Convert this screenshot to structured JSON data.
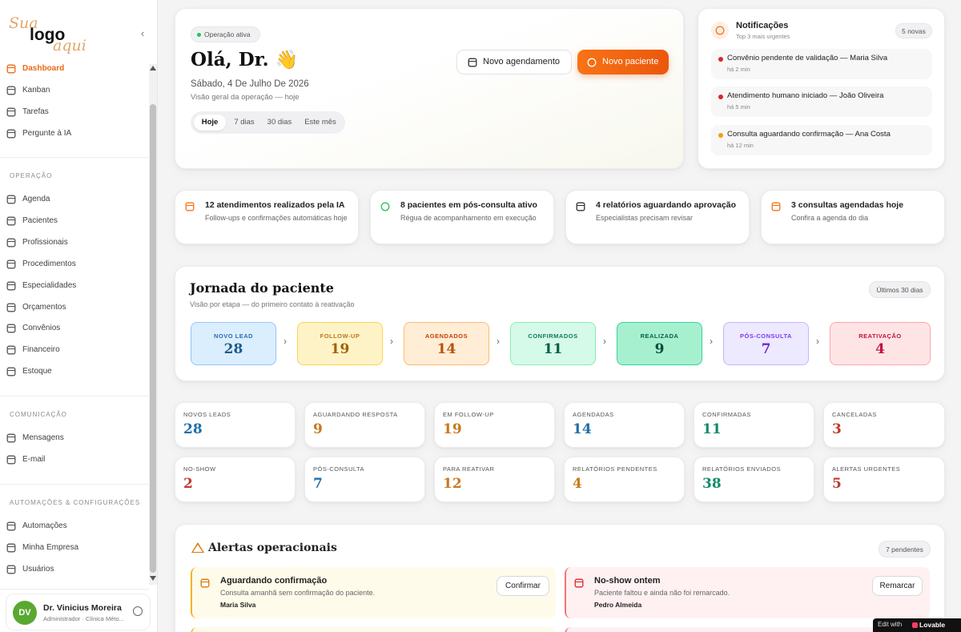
{
  "sidebar": {
    "logo": {
      "line1": "Sua",
      "line2": "logo",
      "line3": "aqui"
    },
    "primary": [
      "Dashboard",
      "Kanban",
      "Tarefas",
      "Pergunte à IA"
    ],
    "sections": [
      {
        "title": "OPERAÇÃO",
        "items": [
          "Agenda",
          "Pacientes",
          "Profissionais",
          "Procedimentos",
          "Especialidades",
          "Orçamentos",
          "Convênios",
          "Financeiro",
          "Estoque"
        ]
      },
      {
        "title": "COMUNICAÇÃO",
        "items": [
          "Mensagens",
          "E-mail"
        ]
      },
      {
        "title": "AUTOMAÇÕES & CONFIGURAÇÕES",
        "items": [
          "Automações",
          "Minha Empresa",
          "Usuários"
        ]
      }
    ],
    "user": {
      "initials": "DV",
      "name": "Dr. Vinicius Moreira",
      "role": "Administrador · Clínica Méto..."
    }
  },
  "hero": {
    "badge": "Operação ativa",
    "greeting": "Olá, Dr. 👋",
    "date": "Sábado, 4 De Julho De 2026",
    "subtitle": "Visão geral da operação — hoje",
    "tabs": [
      "Hoje",
      "7 dias",
      "30 dias",
      "Este mês"
    ],
    "buttons": [
      "Novo agendamento",
      "Novo paciente"
    ]
  },
  "notifications": {
    "title": "Notificações",
    "subtitle": "Top 3 mais urgentes",
    "badge": "5 novas",
    "items": [
      {
        "text": "Convênio pendente de validação — Maria Silva",
        "time": "há 2 min"
      },
      {
        "text": "Atendimento humano iniciado — João Oliveira",
        "time": "há 5 min"
      },
      {
        "text": "Consulta aguardando confirmação — Ana Costa",
        "time": "há 12 min"
      }
    ]
  },
  "highlights": [
    {
      "title": "12 atendimentos realizados pela IA",
      "text": "Follow-ups e confirmações automáticas hoje"
    },
    {
      "title": "8 pacientes em pós-consulta ativo",
      "text": "Régua de acompanhamento em execução"
    },
    {
      "title": "4 relatórios aguardando aprovação",
      "text": "Especialistas precisam revisar"
    },
    {
      "title": "3 consultas agendadas hoje",
      "text": "Confira a agenda do dia"
    }
  ],
  "journey": {
    "title": "Jornada do paciente",
    "subtitle": "Visão por etapa — do primeiro contato à reativação",
    "badge": "Últimos 30 dias",
    "stages": [
      {
        "label": "NOVO LEAD",
        "value": 28
      },
      {
        "label": "FOLLOW-UP",
        "value": 19
      },
      {
        "label": "AGENDADOS",
        "value": 14
      },
      {
        "label": "CONFIRMADOS",
        "value": 11
      },
      {
        "label": "REALIZADA",
        "value": 9
      },
      {
        "label": "PÓS-CONSULTA",
        "value": 7
      },
      {
        "label": "REATIVAÇÃO",
        "value": 4
      }
    ]
  },
  "metrics": [
    {
      "label": "NOVOS LEADS",
      "value": 28
    },
    {
      "label": "AGUARDANDO RESPOSTA",
      "value": 9
    },
    {
      "label": "EM FOLLOW-UP",
      "value": 19
    },
    {
      "label": "AGENDADAS",
      "value": 14
    },
    {
      "label": "CONFIRMADAS",
      "value": 11
    },
    {
      "label": "CANCELADAS",
      "value": 3
    },
    {
      "label": "NO-SHOW",
      "value": 2
    },
    {
      "label": "PÓS-CONSULTA",
      "value": 7
    },
    {
      "label": "PARA REATIVAR",
      "value": 12
    },
    {
      "label": "RELATÓRIOS PENDENTES",
      "value": 4
    },
    {
      "label": "RELATÓRIOS ENVIADOS",
      "value": 38
    },
    {
      "label": "ALERTAS URGENTES",
      "value": 5
    }
  ],
  "alerts": {
    "title": "Alertas operacionais",
    "badge": "7 pendentes",
    "items": [
      {
        "title": "Aguardando confirmação",
        "text": "Consulta amanhã sem confirmação do paciente.",
        "person": "Maria Silva",
        "action": "Confirmar"
      },
      {
        "title": "No-show ontem",
        "text": "Paciente faltou e ainda não foi remarcado.",
        "person": "Pedro Almeida",
        "action": "Remarcar"
      }
    ]
  },
  "footer_badge": {
    "prefix": "Edit with",
    "brand": "Lovable"
  }
}
